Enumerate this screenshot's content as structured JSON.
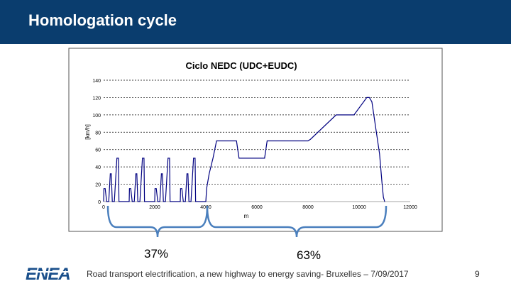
{
  "header": {
    "title": "Homologation cycle"
  },
  "chart_data": {
    "type": "line",
    "title": "Ciclo NEDC (UDC+EUDC)",
    "xlabel": "m",
    "ylabel": "[km/h]",
    "xlim": [
      0,
      12000
    ],
    "ylim": [
      0,
      140
    ],
    "grid": true,
    "x_ticks": [
      "0",
      "2000",
      "4000",
      "6000",
      "8000",
      "10000",
      "12000"
    ],
    "y_ticks": [
      "0",
      "20",
      "40",
      "60",
      "80",
      "100",
      "120",
      "140"
    ],
    "series": [
      {
        "color": "#000080",
        "x": [
          0,
          10,
          60,
          120,
          200,
          260,
          300,
          340,
          420,
          520,
          580,
          600,
          1000,
          1010,
          1060,
          1120,
          1200,
          1260,
          1300,
          1340,
          1420,
          1520,
          1580,
          1600,
          2000,
          2010,
          2060,
          2120,
          2200,
          2260,
          2300,
          2340,
          2420,
          2520,
          2580,
          2600,
          3000,
          3010,
          3060,
          3120,
          3200,
          3260,
          3300,
          3340,
          3420,
          3520,
          3580,
          3600,
          4000,
          4030,
          4130,
          4280,
          4420,
          4500,
          4530,
          5200,
          5300,
          5400,
          6300,
          6400,
          7400,
          7600,
          8000,
          8100,
          9100,
          9800,
          10300,
          10400,
          10500,
          10650,
          10800,
          10900,
          10950,
          11000,
          11010
        ],
        "y": [
          0,
          15,
          15,
          0,
          0,
          32,
          32,
          0,
          0,
          50,
          50,
          0,
          0,
          15,
          15,
          0,
          0,
          32,
          32,
          0,
          0,
          50,
          50,
          0,
          0,
          15,
          15,
          0,
          0,
          32,
          32,
          0,
          0,
          50,
          50,
          0,
          0,
          15,
          15,
          0,
          0,
          32,
          32,
          0,
          0,
          50,
          50,
          0,
          0,
          15,
          32,
          50,
          70,
          70,
          70,
          70,
          50,
          50,
          50,
          70,
          70,
          70,
          70,
          72,
          100,
          100,
          120,
          120,
          115,
          85,
          55,
          20,
          5,
          0,
          0
        ]
      }
    ],
    "annotations": {
      "left_share": "37%",
      "right_share": "63%"
    }
  },
  "footer": {
    "logo_text": "ENEA",
    "caption": "Road transport electrification, a new highway to energy saving- Bruxelles – 7/09/2017",
    "page_number": "9"
  }
}
